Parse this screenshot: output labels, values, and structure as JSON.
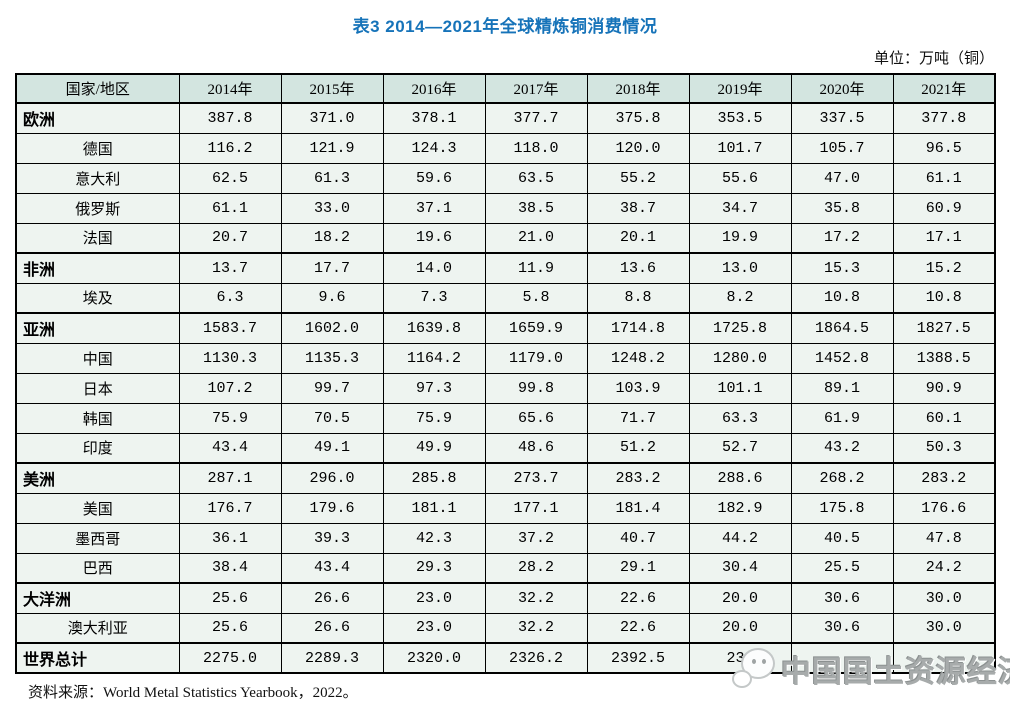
{
  "title": "表3 2014—2021年全球精炼铜消费情况",
  "unit_label": "单位：万吨（铜）",
  "source_note": "资料来源：World Metal Statistics Yearbook，2022。",
  "watermark": {
    "text": "中国国土资源经济",
    "logo": "chat-bubbles-mascot-logo"
  },
  "colors": {
    "title_blue": "#1673b9",
    "header_bg": "#d3e5e0",
    "row_bg": "#eef4f0",
    "border": "#000000",
    "watermark_gray": "#a7abab"
  },
  "table": {
    "columns": [
      "国家/地区",
      "2014年",
      "2015年",
      "2016年",
      "2017年",
      "2018年",
      "2019年",
      "2020年",
      "2021年"
    ],
    "rows": [
      {
        "label": "欧洲",
        "type": "region",
        "values": [
          "387.8",
          "371.0",
          "378.1",
          "377.7",
          "375.8",
          "353.5",
          "337.5",
          "377.8"
        ]
      },
      {
        "label": "德国",
        "type": "country",
        "values": [
          "116.2",
          "121.9",
          "124.3",
          "118.0",
          "120.0",
          "101.7",
          "105.7",
          "96.5"
        ]
      },
      {
        "label": "意大利",
        "type": "country",
        "values": [
          "62.5",
          "61.3",
          "59.6",
          "63.5",
          "55.2",
          "55.6",
          "47.0",
          "61.1"
        ]
      },
      {
        "label": "俄罗斯",
        "type": "country",
        "values": [
          "61.1",
          "33.0",
          "37.1",
          "38.5",
          "38.7",
          "34.7",
          "35.8",
          "60.9"
        ]
      },
      {
        "label": "法国",
        "type": "country",
        "values": [
          "20.7",
          "18.2",
          "19.6",
          "21.0",
          "20.1",
          "19.9",
          "17.2",
          "17.1"
        ]
      },
      {
        "label": "非洲",
        "type": "region",
        "values": [
          "13.7",
          "17.7",
          "14.0",
          "11.9",
          "13.6",
          "13.0",
          "15.3",
          "15.2"
        ]
      },
      {
        "label": "埃及",
        "type": "country",
        "values": [
          "6.3",
          "9.6",
          "7.3",
          "5.8",
          "8.8",
          "8.2",
          "10.8",
          "10.8"
        ]
      },
      {
        "label": "亚洲",
        "type": "region",
        "values": [
          "1583.7",
          "1602.0",
          "1639.8",
          "1659.9",
          "1714.8",
          "1725.8",
          "1864.5",
          "1827.5"
        ]
      },
      {
        "label": "中国",
        "type": "country",
        "values": [
          "1130.3",
          "1135.3",
          "1164.2",
          "1179.0",
          "1248.2",
          "1280.0",
          "1452.8",
          "1388.5"
        ]
      },
      {
        "label": "日本",
        "type": "country",
        "values": [
          "107.2",
          "99.7",
          "97.3",
          "99.8",
          "103.9",
          "101.1",
          "89.1",
          "90.9"
        ]
      },
      {
        "label": "韩国",
        "type": "country",
        "values": [
          "75.9",
          "70.5",
          "75.9",
          "65.6",
          "71.7",
          "63.3",
          "61.9",
          "60.1"
        ]
      },
      {
        "label": "印度",
        "type": "country",
        "values": [
          "43.4",
          "49.1",
          "49.9",
          "48.6",
          "51.2",
          "52.7",
          "43.2",
          "50.3"
        ]
      },
      {
        "label": "美洲",
        "type": "region",
        "values": [
          "287.1",
          "296.0",
          "285.8",
          "273.7",
          "283.2",
          "288.6",
          "268.2",
          "283.2"
        ]
      },
      {
        "label": "美国",
        "type": "country",
        "values": [
          "176.7",
          "179.6",
          "181.1",
          "177.1",
          "181.4",
          "182.9",
          "175.8",
          "176.6"
        ]
      },
      {
        "label": "墨西哥",
        "type": "country",
        "values": [
          "36.1",
          "39.3",
          "42.3",
          "37.2",
          "40.7",
          "44.2",
          "40.5",
          "47.8"
        ]
      },
      {
        "label": "巴西",
        "type": "country",
        "values": [
          "38.4",
          "43.4",
          "29.3",
          "28.2",
          "29.1",
          "30.4",
          "25.5",
          "24.2"
        ]
      },
      {
        "label": "大洋洲",
        "type": "region",
        "values": [
          "25.6",
          "26.6",
          "23.0",
          "32.2",
          "22.6",
          "20.0",
          "30.6",
          "30.0"
        ]
      },
      {
        "label": "澳大利亚",
        "type": "country",
        "values": [
          "25.6",
          "26.6",
          "23.0",
          "32.2",
          "22.6",
          "20.0",
          "30.6",
          "30.0"
        ]
      },
      {
        "label": "世界总计",
        "type": "region",
        "values": [
          "2275.0",
          "2289.3",
          "2320.0",
          "2326.2",
          "2392.5",
          "238",
          "",
          ""
        ],
        "partial_index": 5
      }
    ]
  }
}
